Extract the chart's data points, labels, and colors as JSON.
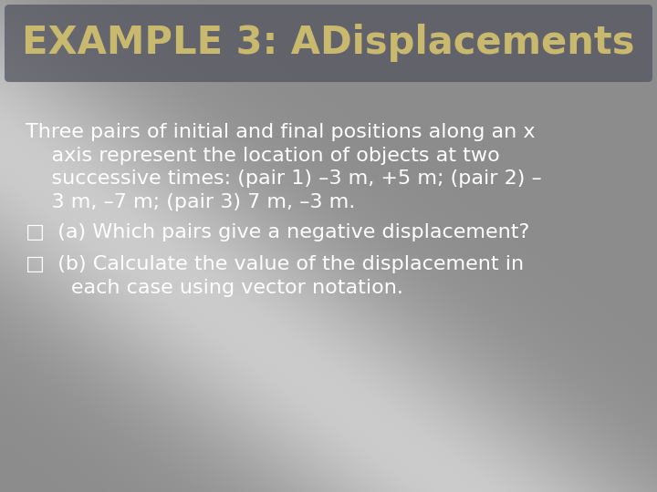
{
  "title_line1": "EXAMPLE 3: ADisplacements",
  "title_color": "#c8b96e",
  "title_fontsize": 30,
  "body_color": "#ffffff",
  "body_fontsize": 16,
  "bullet_fontsize": 16,
  "paragraph_line1": "Three pairs of initial and final positions along an x",
  "paragraph_line2": "    axis represent the location of objects at two",
  "paragraph_line3": "    successive times: (pair 1) –3 m, +5 m; (pair 2) –",
  "paragraph_line4": "    3 m, –7 m; (pair 3) 7 m, –3 m.",
  "bullet1_line1": "□  (a) Which pairs give a negative displacement?",
  "bullet2_line1": "□  (b) Calculate the value of the displacement in",
  "bullet2_line2": "       each case using vector notation."
}
